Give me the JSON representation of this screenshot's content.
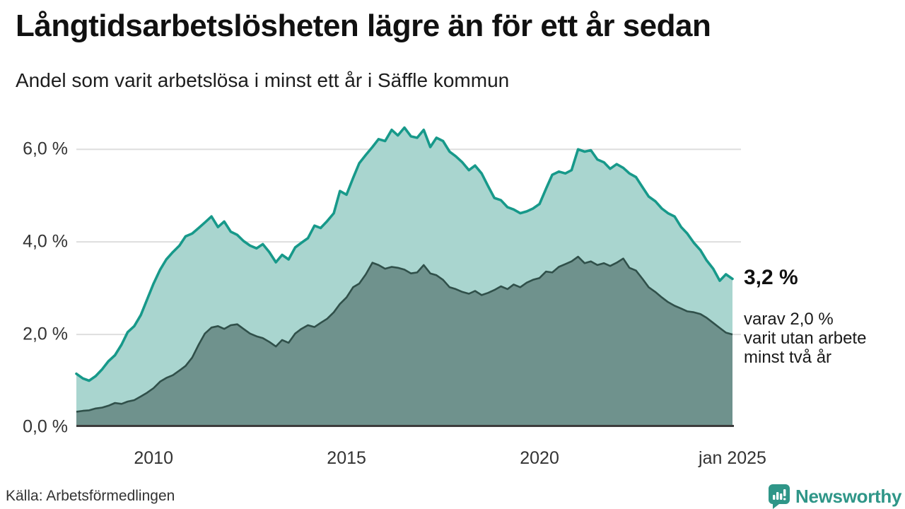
{
  "source": "Källa: Arbetsförmedlingen",
  "branding": {
    "name": "Newsworthy",
    "color": "#2f9688",
    "icon": "newsworthy-bar-chart-bubble-icon"
  },
  "annotation": {
    "total_label": "3,2 %",
    "detail_lines": [
      "varav 2,0 %",
      "varit utan arbete",
      "minst två år"
    ]
  },
  "chart_data": {
    "type": "area",
    "title": "Långtidsarbetslösheten lägre än för ett år sedan",
    "subtitle": "Andel som varit arbetslösa i minst ett år i Säffle kommun",
    "xlabel": "",
    "ylabel": "",
    "grid": "horizontal",
    "grid_color": "#dedede",
    "baseline_color": "#3c3c3c",
    "x_range": [
      2008,
      2025
    ],
    "y_range": [
      0,
      6.8
    ],
    "x_ticks": [
      {
        "value": 2010,
        "label": "2010"
      },
      {
        "value": 2015,
        "label": "2015"
      },
      {
        "value": 2020,
        "label": "2020"
      },
      {
        "value": 2025,
        "label": "jan 2025"
      }
    ],
    "y_ticks": [
      {
        "value": 0,
        "label": "0,0 %"
      },
      {
        "value": 2,
        "label": "2,0 %"
      },
      {
        "value": 4,
        "label": "4,0 %"
      },
      {
        "value": 6,
        "label": "6,0 %"
      }
    ],
    "x": [
      2008,
      2008.17,
      2008.33,
      2008.5,
      2008.67,
      2008.83,
      2009,
      2009.17,
      2009.33,
      2009.5,
      2009.67,
      2009.83,
      2010,
      2010.17,
      2010.33,
      2010.5,
      2010.67,
      2010.83,
      2011,
      2011.17,
      2011.33,
      2011.5,
      2011.67,
      2011.83,
      2012,
      2012.17,
      2012.33,
      2012.5,
      2012.67,
      2012.83,
      2013,
      2013.17,
      2013.33,
      2013.5,
      2013.67,
      2013.83,
      2014,
      2014.17,
      2014.33,
      2014.5,
      2014.67,
      2014.83,
      2015,
      2015.17,
      2015.33,
      2015.5,
      2015.67,
      2015.83,
      2016,
      2016.17,
      2016.33,
      2016.5,
      2016.67,
      2016.83,
      2017,
      2017.17,
      2017.33,
      2017.5,
      2017.67,
      2017.83,
      2018,
      2018.17,
      2018.33,
      2018.5,
      2018.67,
      2018.83,
      2019,
      2019.17,
      2019.33,
      2019.5,
      2019.67,
      2019.83,
      2020,
      2020.17,
      2020.33,
      2020.5,
      2020.67,
      2020.83,
      2021,
      2021.17,
      2021.33,
      2021.5,
      2021.67,
      2021.83,
      2022,
      2022.17,
      2022.33,
      2022.5,
      2022.67,
      2022.83,
      2023,
      2023.17,
      2023.33,
      2023.5,
      2023.67,
      2023.83,
      2024,
      2024.17,
      2024.33,
      2024.5,
      2024.67,
      2024.83,
      2025
    ],
    "series": [
      {
        "name": "Andel arbetslösa minst ett år",
        "end_value_pct": 3.2,
        "color_line": "#17998a",
        "color_fill": "#a9d5cf",
        "values": [
          1.15,
          1.05,
          1.0,
          1.1,
          1.25,
          1.42,
          1.55,
          1.78,
          2.05,
          2.18,
          2.42,
          2.75,
          3.1,
          3.4,
          3.62,
          3.78,
          3.92,
          4.12,
          4.18,
          4.3,
          4.42,
          4.55,
          4.32,
          4.44,
          4.22,
          4.15,
          4.02,
          3.92,
          3.86,
          3.95,
          3.78,
          3.56,
          3.72,
          3.62,
          3.88,
          3.98,
          4.08,
          4.35,
          4.3,
          4.45,
          4.62,
          5.1,
          5.02,
          5.38,
          5.7,
          5.88,
          6.05,
          6.22,
          6.18,
          6.42,
          6.3,
          6.47,
          6.28,
          6.25,
          6.42,
          6.05,
          6.25,
          6.18,
          5.95,
          5.85,
          5.72,
          5.55,
          5.65,
          5.48,
          5.2,
          4.95,
          4.9,
          4.75,
          4.7,
          4.62,
          4.66,
          4.72,
          4.82,
          5.15,
          5.45,
          5.52,
          5.48,
          5.55,
          6.0,
          5.95,
          5.98,
          5.78,
          5.72,
          5.58,
          5.68,
          5.6,
          5.48,
          5.4,
          5.18,
          4.98,
          4.88,
          4.72,
          4.62,
          4.55,
          4.32,
          4.18,
          3.98,
          3.82,
          3.6,
          3.42,
          3.16,
          3.3,
          3.2
        ]
      },
      {
        "name": "varav arbetslösa minst två år",
        "end_value_pct": 2.0,
        "color_line": "#30504a",
        "color_fill": "#6f928d",
        "values": [
          0.33,
          0.35,
          0.36,
          0.4,
          0.42,
          0.46,
          0.52,
          0.5,
          0.55,
          0.58,
          0.66,
          0.74,
          0.84,
          0.98,
          1.06,
          1.12,
          1.22,
          1.32,
          1.5,
          1.78,
          2.02,
          2.15,
          2.18,
          2.12,
          2.2,
          2.22,
          2.12,
          2.02,
          1.96,
          1.92,
          1.84,
          1.74,
          1.88,
          1.82,
          2.02,
          2.12,
          2.2,
          2.16,
          2.25,
          2.34,
          2.48,
          2.66,
          2.8,
          3.02,
          3.1,
          3.3,
          3.55,
          3.5,
          3.42,
          3.46,
          3.44,
          3.4,
          3.32,
          3.34,
          3.5,
          3.32,
          3.28,
          3.18,
          3.02,
          2.98,
          2.92,
          2.88,
          2.94,
          2.85,
          2.9,
          2.96,
          3.04,
          2.98,
          3.08,
          3.02,
          3.12,
          3.18,
          3.22,
          3.36,
          3.34,
          3.46,
          3.52,
          3.58,
          3.68,
          3.54,
          3.58,
          3.5,
          3.54,
          3.48,
          3.55,
          3.64,
          3.44,
          3.38,
          3.2,
          3.02,
          2.92,
          2.8,
          2.7,
          2.62,
          2.56,
          2.5,
          2.48,
          2.44,
          2.36,
          2.25,
          2.14,
          2.04,
          2.0
        ]
      }
    ]
  }
}
